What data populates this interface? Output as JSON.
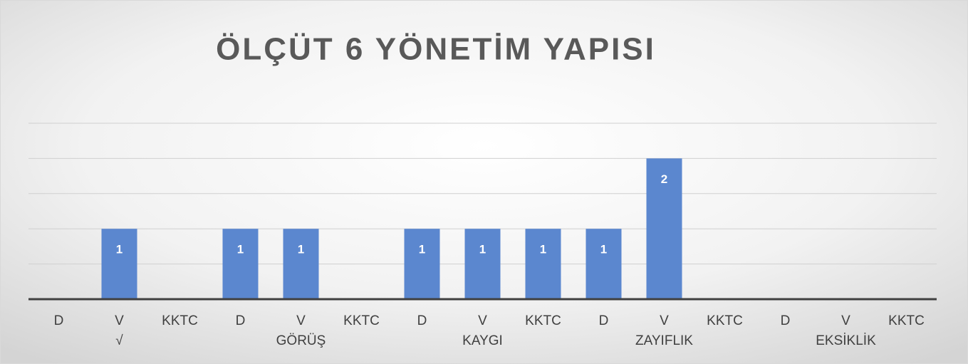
{
  "chart_data": {
    "type": "bar",
    "title": "ÖLÇÜT 6 YÖNETİM YAPISI",
    "categories": [
      "D",
      "V",
      "KKTC",
      "D",
      "V",
      "KKTC",
      "D",
      "V",
      "KKTC",
      "D",
      "V",
      "KKTC",
      "D",
      "V",
      "KKTC"
    ],
    "groups": [
      "√",
      "GÖRÜŞ",
      "KAYGI",
      "ZAYIFLIK",
      "EKSİKLİK"
    ],
    "values": [
      null,
      1,
      null,
      1,
      1,
      null,
      1,
      1,
      1,
      1,
      2,
      null,
      null,
      null,
      null
    ],
    "color": "#5b87cf",
    "ylim": [
      0,
      2.5
    ],
    "yticks": [
      0,
      0.5,
      1,
      1.5,
      2,
      2.5
    ],
    "grid": true
  }
}
